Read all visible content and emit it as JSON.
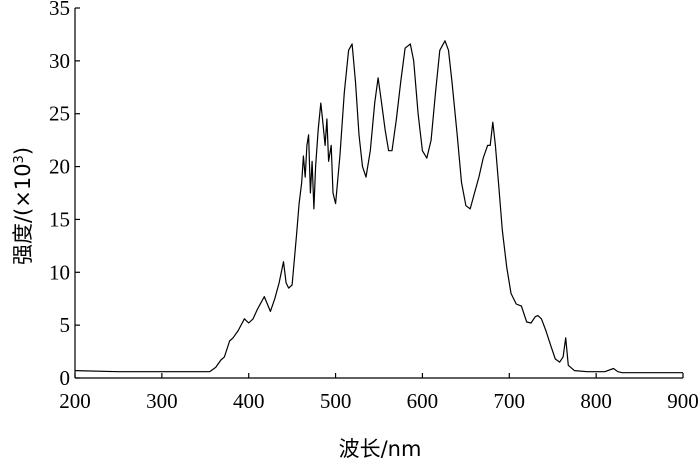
{
  "chart_data": {
    "type": "line",
    "title": "",
    "xlabel": "波长/nm",
    "ylabel_main": "强度/(×10",
    "ylabel_sup": "3",
    "ylabel_close": ")",
    "xlim": [
      200,
      900
    ],
    "ylim": [
      0,
      35
    ],
    "xticks": [
      200,
      300,
      400,
      500,
      600,
      700,
      800,
      900
    ],
    "yticks": [
      0,
      5,
      10,
      15,
      20,
      25,
      30,
      35
    ],
    "grid": false,
    "line_color": "#000000",
    "series": [
      {
        "x": [
          200,
          250,
          300,
          340,
          355,
          362,
          368,
          372,
          378,
          382,
          388,
          395,
          400,
          405,
          410,
          418,
          425,
          430,
          435,
          440,
          443,
          446,
          450,
          455,
          458,
          461,
          463,
          465,
          467,
          469,
          471,
          473,
          475,
          477,
          480,
          483,
          485,
          488,
          490,
          492,
          495,
          497,
          500,
          505,
          510,
          515,
          519,
          523,
          527,
          531,
          535,
          540,
          545,
          549,
          553,
          557,
          561,
          565,
          570,
          575,
          580,
          586,
          590,
          595,
          600,
          605,
          610,
          615,
          620,
          626,
          630,
          634,
          640,
          645,
          650,
          655,
          660,
          665,
          670,
          675,
          678,
          681,
          684,
          688,
          692,
          697,
          702,
          708,
          714,
          720,
          725,
          730,
          733,
          737,
          742,
          748,
          753,
          758,
          762,
          765,
          768,
          775,
          790,
          810,
          820,
          825,
          830,
          850,
          900
        ],
        "y": [
          0.7,
          0.6,
          0.6,
          0.6,
          0.6,
          1.0,
          1.7,
          2.0,
          3.5,
          3.8,
          4.5,
          5.6,
          5.2,
          5.6,
          6.5,
          7.7,
          6.3,
          7.5,
          9.0,
          11.0,
          9.0,
          8.5,
          8.8,
          13.5,
          16.5,
          18.5,
          21.0,
          19.0,
          22.0,
          23.0,
          17.5,
          20.5,
          16.0,
          20.0,
          23.5,
          26.0,
          24.5,
          22.0,
          24.5,
          20.5,
          22.0,
          17.5,
          16.5,
          21.0,
          27.0,
          31.0,
          31.6,
          28.0,
          23.0,
          20.0,
          19.0,
          21.5,
          26.0,
          28.4,
          26.0,
          23.5,
          21.5,
          21.5,
          24.5,
          28.0,
          31.2,
          31.6,
          30.0,
          25.0,
          21.5,
          20.8,
          22.5,
          27.0,
          31.0,
          31.9,
          31.0,
          28.0,
          23.0,
          18.5,
          16.3,
          16.0,
          17.5,
          19.0,
          20.8,
          22.0,
          22.0,
          24.2,
          22.0,
          18.0,
          14.0,
          10.5,
          8.0,
          7.0,
          6.8,
          5.3,
          5.2,
          5.8,
          5.9,
          5.6,
          4.5,
          3.0,
          1.8,
          1.5,
          2.0,
          3.8,
          1.2,
          0.7,
          0.6,
          0.6,
          0.9,
          0.6,
          0.5,
          0.5,
          0.5
        ]
      }
    ]
  }
}
